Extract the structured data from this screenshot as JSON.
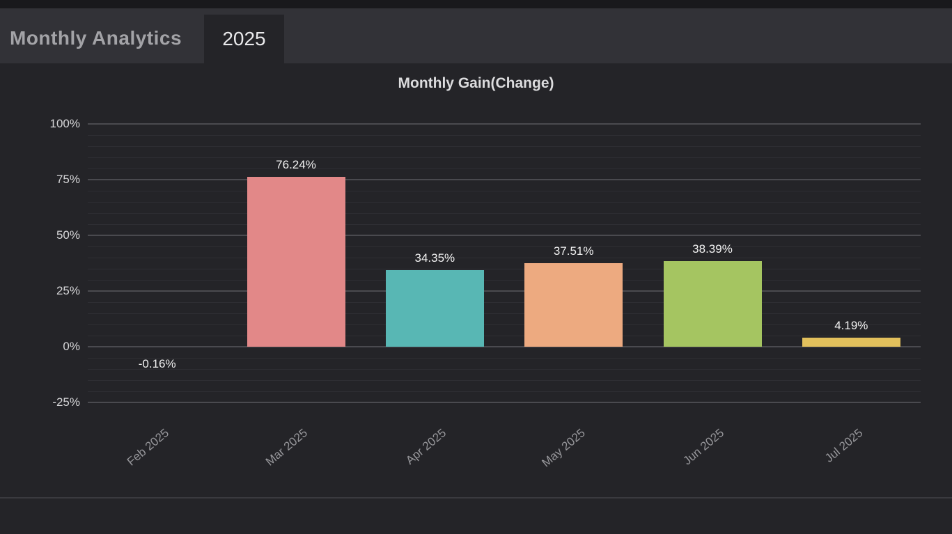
{
  "header": {
    "title": "Monthly Analytics",
    "tab": "2025"
  },
  "chart_data": {
    "type": "bar",
    "title": "Monthly Gain(Change)",
    "categories": [
      "Feb 2025",
      "Mar 2025",
      "Apr 2025",
      "May 2025",
      "Jun 2025",
      "Jul 2025"
    ],
    "values": [
      -0.16,
      76.24,
      34.35,
      37.51,
      38.39,
      4.19
    ],
    "value_labels": [
      "-0.16%",
      "76.24%",
      "34.35%",
      "37.51%",
      "38.39%",
      "4.19%"
    ],
    "bar_colors": [
      null,
      "#e28888",
      "#58b7b4",
      "#edaa80",
      "#a5c561",
      "#e2c05c"
    ],
    "xlabel": "",
    "ylabel": "",
    "ylim": [
      -25,
      100
    ],
    "y_ticks": [
      {
        "label": "100%",
        "value": 100
      },
      {
        "label": "75%",
        "value": 75
      },
      {
        "label": "50%",
        "value": 50
      },
      {
        "label": "25%",
        "value": 25
      },
      {
        "label": "0%",
        "value": 0
      },
      {
        "label": "-25%",
        "value": -25
      }
    ],
    "minor_grid_step": 5,
    "grid": "horizontal, major every 25% with faint minor lines every 5%",
    "legend": "none",
    "x_label_rotation_deg": 40
  },
  "colors": {
    "page_background": "#242428",
    "top_strip": "#19191c",
    "header_band": "#323237",
    "header_title_text": "#a3a3a7",
    "active_tab_background": "#242428",
    "tab_text": "#e9e9eb",
    "chart_title_text": "#dcdcde",
    "y_tick_text": "#d6d6d8",
    "x_tick_text": "#97979b",
    "value_label_text": "#f2f2f2",
    "grid_major": "#4a4a4f",
    "grid_minor": "#2e2e33",
    "divider": "#3a3a3f"
  }
}
